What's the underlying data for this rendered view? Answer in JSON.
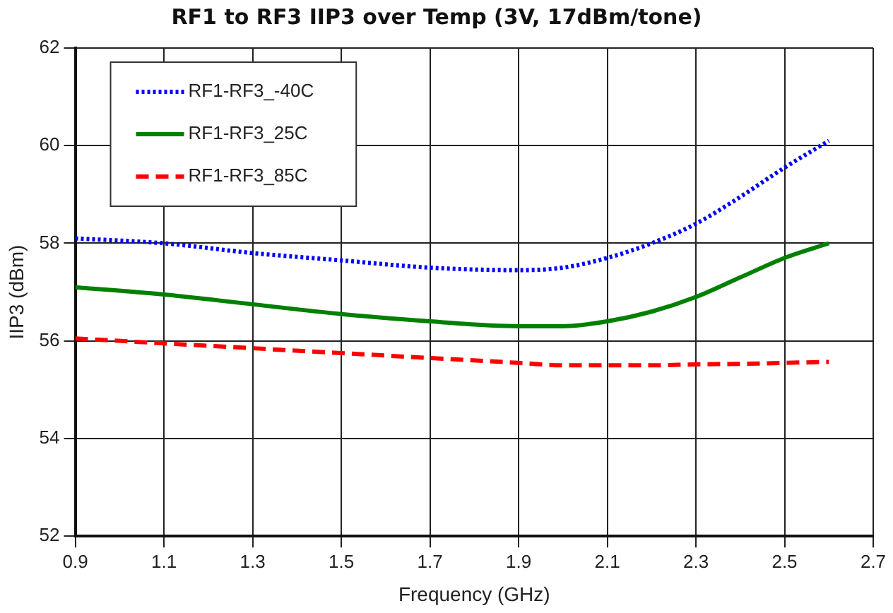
{
  "chart_data": {
    "type": "line",
    "title": "RF1 to RF3 IIP3 over Temp (3V, 17dBm/tone)",
    "xlabel": "Frequency (GHz)",
    "ylabel": "IIP3 (dBm)",
    "x": [
      0.9,
      1.1,
      1.3,
      1.5,
      1.7,
      1.9,
      2.0,
      2.1,
      2.2,
      2.3,
      2.4,
      2.5,
      2.6
    ],
    "series": [
      {
        "name": "RF1-RF3_-40C",
        "color": "#0000ff",
        "line_style": "dotted",
        "values": [
          58.1,
          58.0,
          57.8,
          57.65,
          57.5,
          57.45,
          57.5,
          57.7,
          58.0,
          58.4,
          58.95,
          59.55,
          60.1
        ]
      },
      {
        "name": "RF1-RF3_25C",
        "color": "#008000",
        "line_style": "solid",
        "values": [
          57.1,
          56.95,
          56.75,
          56.55,
          56.4,
          56.3,
          56.3,
          56.4,
          56.6,
          56.9,
          57.3,
          57.7,
          58.0
        ]
      },
      {
        "name": "RF1-RF3_85C",
        "color": "#ff0000",
        "line_style": "dashed",
        "values": [
          56.05,
          55.95,
          55.85,
          55.75,
          55.65,
          55.55,
          55.5,
          55.5,
          55.5,
          55.52,
          55.53,
          55.55,
          55.57
        ]
      }
    ],
    "xlim": [
      0.9,
      2.7
    ],
    "xticks": [
      {
        "value": 0.9,
        "label": "0.9"
      },
      {
        "value": 1.1,
        "label": "1.1"
      },
      {
        "value": 1.3,
        "label": "1.3"
      },
      {
        "value": 1.5,
        "label": "1.5"
      },
      {
        "value": 1.7,
        "label": "1.7"
      },
      {
        "value": 1.9,
        "label": "1.9"
      },
      {
        "value": 2.1,
        "label": "2.1"
      },
      {
        "value": 2.3,
        "label": "2.3"
      },
      {
        "value": 2.5,
        "label": "2.5"
      },
      {
        "value": 2.7,
        "label": "2.7"
      }
    ],
    "ylim": [
      52,
      62
    ],
    "yticks": [
      52,
      54,
      56,
      58,
      60,
      62
    ],
    "grid": true,
    "legend": "top left",
    "marker": "none"
  }
}
